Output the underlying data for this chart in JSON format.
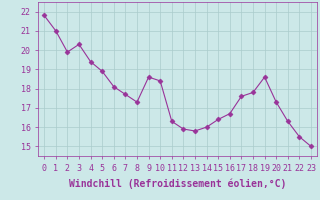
{
  "x": [
    0,
    1,
    2,
    3,
    4,
    5,
    6,
    7,
    8,
    9,
    10,
    11,
    12,
    13,
    14,
    15,
    16,
    17,
    18,
    19,
    20,
    21,
    22,
    23
  ],
  "y": [
    21.8,
    21.0,
    19.9,
    20.3,
    19.4,
    18.9,
    18.1,
    17.7,
    17.3,
    18.6,
    18.4,
    16.3,
    15.9,
    15.8,
    16.0,
    16.4,
    16.7,
    17.6,
    17.8,
    18.6,
    17.3,
    16.3,
    15.5,
    15.0
  ],
  "line_color": "#993399",
  "marker": "D",
  "markersize": 2.5,
  "linewidth": 0.8,
  "bg_color": "#cce8e8",
  "grid_color": "#aacccc",
  "xlabel": "Windchill (Refroidissement éolien,°C)",
  "xlabel_fontsize": 7,
  "tick_fontsize": 6,
  "ylim": [
    14.5,
    22.5
  ],
  "xlim": [
    -0.5,
    23.5
  ],
  "yticks": [
    15,
    16,
    17,
    18,
    19,
    20,
    21,
    22
  ],
  "xticks": [
    0,
    1,
    2,
    3,
    4,
    5,
    6,
    7,
    8,
    9,
    10,
    11,
    12,
    13,
    14,
    15,
    16,
    17,
    18,
    19,
    20,
    21,
    22,
    23
  ]
}
